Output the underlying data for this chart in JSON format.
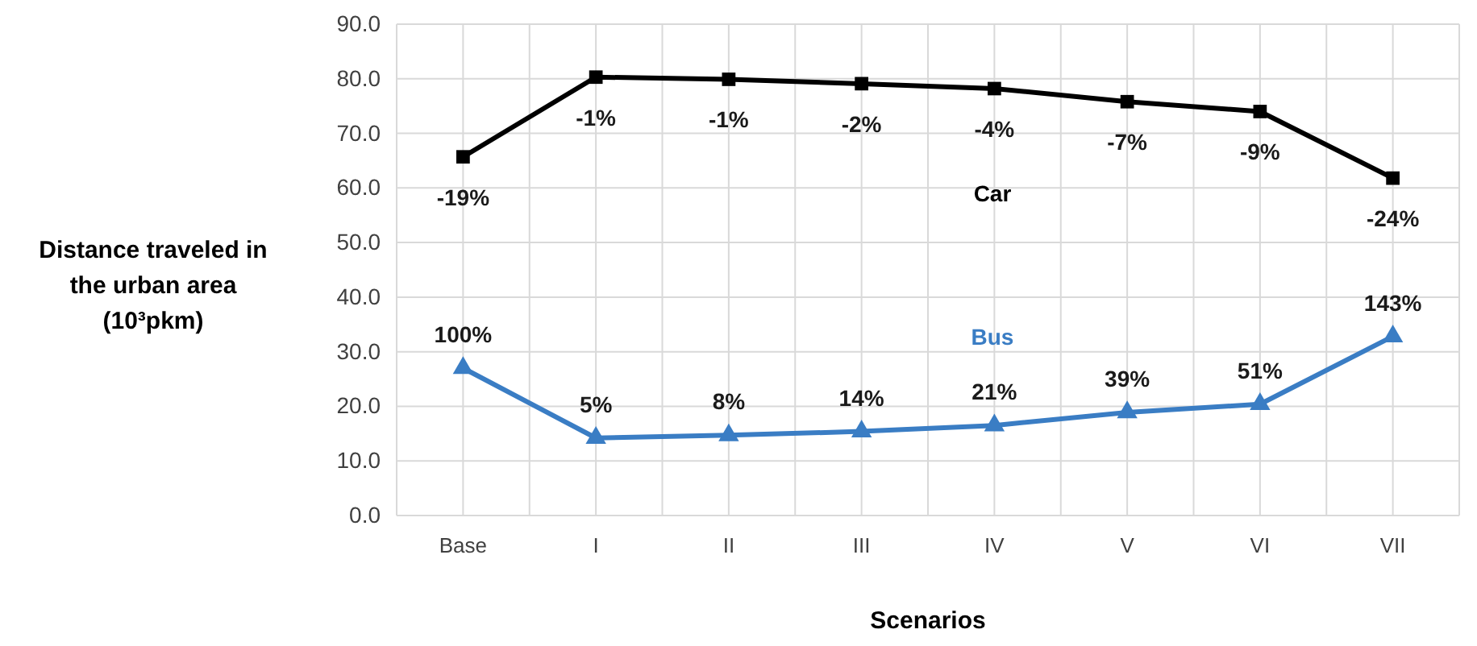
{
  "chart_data": {
    "type": "line",
    "xlabel": "Scenarios",
    "ylabel": "Distance  traveled in the urban area (10³pkm)",
    "categories": [
      "Base",
      "I",
      "II",
      "III",
      "IV",
      "V",
      "VI",
      "VII"
    ],
    "series": [
      {
        "name": "Car",
        "color": "#000000",
        "marker": "square",
        "values": [
          65.7,
          80.3,
          79.9,
          79.1,
          78.2,
          75.8,
          74.0,
          61.8
        ]
      },
      {
        "name": "Bus",
        "color": "#3a7dc4",
        "marker": "triangle",
        "values": [
          27.0,
          14.2,
          14.7,
          15.4,
          16.5,
          18.9,
          20.4,
          32.8
        ]
      }
    ],
    "annotations": [
      {
        "text": "-19%",
        "x": "Base",
        "y": 65.7
      },
      {
        "text": "-1%",
        "x": "I",
        "y": 80.3
      },
      {
        "text": "-1%",
        "x": "II",
        "y": 79.9
      },
      {
        "text": "-2%",
        "x": "III",
        "y": 79.1
      },
      {
        "text": "-4%",
        "x": "IV",
        "y": 78.2
      },
      {
        "text": "-7%",
        "x": "V",
        "y": 75.8
      },
      {
        "text": "-9%",
        "x": "VI",
        "y": 74.0
      },
      {
        "text": "-24%",
        "x": "VII",
        "y": 61.8
      },
      {
        "text": "100%",
        "x": "Base",
        "y": 27.0
      },
      {
        "text": "5%",
        "x": "I",
        "y": 14.2
      },
      {
        "text": "8%",
        "x": "II",
        "y": 14.7
      },
      {
        "text": "14%",
        "x": "III",
        "y": 15.4
      },
      {
        "text": "21%",
        "x": "IV",
        "y": 16.5
      },
      {
        "text": "39%",
        "x": "V",
        "y": 18.9
      },
      {
        "text": "51%",
        "x": "VI",
        "y": 20.4
      },
      {
        "text": "143%",
        "x": "VII",
        "y": 32.8
      }
    ],
    "ylim": [
      0,
      90
    ],
    "yticks": [
      {
        "value": 0,
        "label": "0.0"
      },
      {
        "value": 10,
        "label": "10.0"
      },
      {
        "value": 20,
        "label": "20.0"
      },
      {
        "value": 30,
        "label": "30.0"
      },
      {
        "value": 40,
        "label": "40.0"
      },
      {
        "value": 50,
        "label": "50.0"
      },
      {
        "value": 60,
        "label": "60.0"
      },
      {
        "value": 70,
        "label": "70.0"
      },
      {
        "value": 80,
        "label": "80.0"
      },
      {
        "value": 90,
        "label": "90.0"
      }
    ],
    "grid": true,
    "line_style": "solid"
  }
}
